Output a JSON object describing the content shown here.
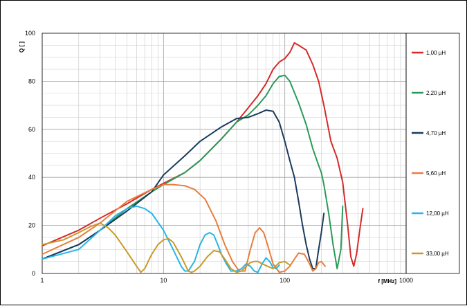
{
  "chart_data": {
    "type": "line",
    "xlabel": "f [MHz]",
    "ylabel": "Q [ ]",
    "xscale": "log",
    "xlim": [
      1,
      1000
    ],
    "ylim": [
      0,
      100
    ],
    "x_ticks": [
      "1",
      "10",
      "100",
      "1000"
    ],
    "y_ticks": [
      "0",
      "20",
      "40",
      "60",
      "80",
      "100"
    ],
    "grid": true,
    "legend": "right",
    "series": [
      {
        "name": "1,00 µH",
        "color": "#d42a2a",
        "points": [
          [
            1,
            11.5
          ],
          [
            2,
            18
          ],
          [
            3,
            23
          ],
          [
            5,
            29
          ],
          [
            8,
            35
          ],
          [
            10,
            37.5
          ],
          [
            15,
            42
          ],
          [
            20,
            47
          ],
          [
            30,
            56
          ],
          [
            40,
            63
          ],
          [
            50,
            69
          ],
          [
            60,
            74
          ],
          [
            70,
            79
          ],
          [
            80,
            85
          ],
          [
            90,
            88
          ],
          [
            100,
            89.5
          ],
          [
            110,
            92
          ],
          [
            120,
            96
          ],
          [
            130,
            95
          ],
          [
            150,
            93
          ],
          [
            170,
            87
          ],
          [
            190,
            80
          ],
          [
            210,
            70
          ],
          [
            240,
            55
          ],
          [
            270,
            48
          ],
          [
            300,
            38
          ],
          [
            330,
            20
          ],
          [
            350,
            7
          ],
          [
            370,
            3
          ],
          [
            390,
            8
          ],
          [
            420,
            20
          ],
          [
            440,
            27
          ]
        ]
      },
      {
        "name": "2,20 µH",
        "color": "#2a9a5a",
        "points": [
          [
            1,
            6
          ],
          [
            2,
            12
          ],
          [
            3,
            18
          ],
          [
            5,
            27
          ],
          [
            8,
            34
          ],
          [
            10,
            37
          ],
          [
            15,
            42
          ],
          [
            20,
            47
          ],
          [
            30,
            56
          ],
          [
            40,
            63
          ],
          [
            50,
            66
          ],
          [
            60,
            70
          ],
          [
            70,
            74
          ],
          [
            80,
            79
          ],
          [
            90,
            82
          ],
          [
            100,
            82.5
          ],
          [
            110,
            80
          ],
          [
            130,
            71
          ],
          [
            150,
            62
          ],
          [
            170,
            52
          ],
          [
            190,
            45
          ],
          [
            200,
            42
          ],
          [
            210,
            37
          ],
          [
            230,
            25
          ],
          [
            250,
            12
          ],
          [
            270,
            2
          ],
          [
            290,
            10
          ],
          [
            300,
            28
          ]
        ]
      },
      {
        "name": "4,70 µH",
        "color": "#1a3a5c",
        "points": [
          [
            1,
            6
          ],
          [
            2,
            12
          ],
          [
            3,
            18
          ],
          [
            5,
            26
          ],
          [
            8,
            34
          ],
          [
            10,
            41
          ],
          [
            15,
            49
          ],
          [
            20,
            55
          ],
          [
            30,
            61
          ],
          [
            40,
            64.5
          ],
          [
            50,
            65
          ],
          [
            60,
            66.5
          ],
          [
            70,
            68
          ],
          [
            80,
            67.5
          ],
          [
            90,
            63
          ],
          [
            100,
            55
          ],
          [
            110,
            47
          ],
          [
            120,
            40
          ],
          [
            130,
            30
          ],
          [
            140,
            20
          ],
          [
            150,
            12
          ],
          [
            160,
            6
          ],
          [
            170,
            2
          ],
          [
            180,
            2
          ],
          [
            190,
            10
          ],
          [
            200,
            17
          ],
          [
            210,
            25
          ]
        ]
      },
      {
        "name": "5,60 µH",
        "color": "#e87d3e",
        "points": [
          [
            1,
            8
          ],
          [
            2,
            15
          ],
          [
            3,
            21
          ],
          [
            5,
            30
          ],
          [
            8,
            35
          ],
          [
            10,
            37
          ],
          [
            12,
            37
          ],
          [
            15,
            36.5
          ],
          [
            18,
            35
          ],
          [
            22,
            31
          ],
          [
            27,
            22
          ],
          [
            32,
            12
          ],
          [
            37,
            5
          ],
          [
            42,
            1
          ],
          [
            47,
            1
          ],
          [
            52,
            10
          ],
          [
            57,
            17
          ],
          [
            62,
            19
          ],
          [
            67,
            17
          ],
          [
            72,
            12
          ],
          [
            80,
            4
          ],
          [
            90,
            0.5
          ],
          [
            100,
            1
          ],
          [
            110,
            3
          ],
          [
            120,
            6
          ],
          [
            130,
            8.5
          ],
          [
            145,
            8
          ],
          [
            160,
            4
          ],
          [
            170,
            1
          ],
          [
            180,
            2
          ],
          [
            190,
            4.5
          ],
          [
            200,
            5
          ],
          [
            215,
            3
          ]
        ]
      },
      {
        "name": "12,00 µH",
        "color": "#28b4e6",
        "points": [
          [
            1,
            6
          ],
          [
            2,
            10
          ],
          [
            3,
            18
          ],
          [
            4,
            24
          ],
          [
            5,
            27
          ],
          [
            6,
            28
          ],
          [
            7,
            27
          ],
          [
            8,
            25
          ],
          [
            10,
            18
          ],
          [
            12,
            10
          ],
          [
            14,
            3
          ],
          [
            15,
            1
          ],
          [
            16,
            1
          ],
          [
            18,
            5
          ],
          [
            20,
            12
          ],
          [
            22,
            16
          ],
          [
            24,
            17
          ],
          [
            26,
            16
          ],
          [
            28,
            12
          ],
          [
            30,
            8
          ],
          [
            33,
            4
          ],
          [
            36,
            1
          ],
          [
            40,
            1
          ],
          [
            44,
            2
          ],
          [
            48,
            4
          ],
          [
            52,
            3
          ],
          [
            56,
            1
          ],
          [
            60,
            0.5
          ],
          [
            65,
            4
          ],
          [
            70,
            6.5
          ],
          [
            75,
            5
          ],
          [
            80,
            2.5
          ],
          [
            85,
            2
          ],
          [
            90,
            3.5
          ]
        ]
      },
      {
        "name": "33,00 µH",
        "color": "#c89a2a",
        "points": [
          [
            1,
            12
          ],
          [
            1.5,
            14
          ],
          [
            2,
            17
          ],
          [
            2.5,
            19.5
          ],
          [
            3,
            21
          ],
          [
            3.5,
            19
          ],
          [
            4,
            16
          ],
          [
            5,
            9
          ],
          [
            6,
            3
          ],
          [
            6.5,
            0.5
          ],
          [
            7,
            2
          ],
          [
            8,
            8
          ],
          [
            9,
            12
          ],
          [
            10,
            14
          ],
          [
            11,
            14.5
          ],
          [
            12,
            13
          ],
          [
            14,
            7
          ],
          [
            16,
            1
          ],
          [
            17,
            0.5
          ],
          [
            18,
            1
          ],
          [
            20,
            3
          ],
          [
            23,
            7
          ],
          [
            26,
            9.5
          ],
          [
            29,
            9
          ],
          [
            32,
            6
          ],
          [
            36,
            2
          ],
          [
            40,
            0.5
          ],
          [
            44,
            1
          ],
          [
            48,
            3
          ],
          [
            52,
            4.5
          ],
          [
            56,
            5
          ],
          [
            60,
            5
          ],
          [
            65,
            4
          ],
          [
            72,
            3
          ],
          [
            80,
            2
          ],
          [
            90,
            4.5
          ],
          [
            100,
            5
          ],
          [
            110,
            3.5
          ]
        ]
      }
    ]
  }
}
